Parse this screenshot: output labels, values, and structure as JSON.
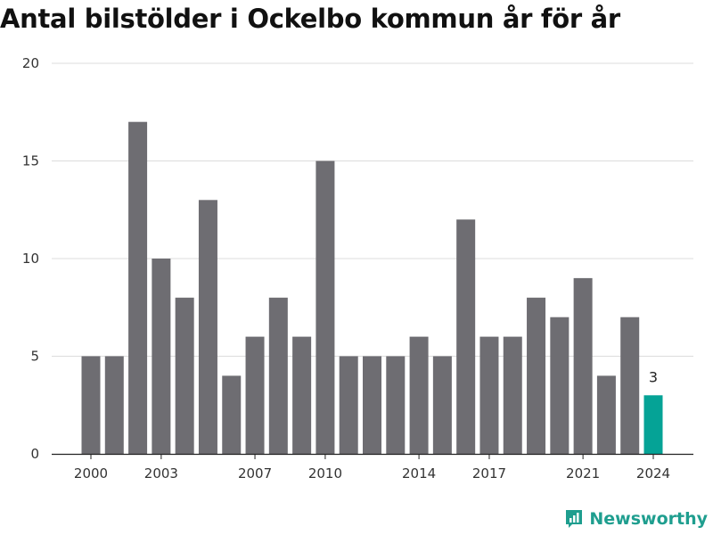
{
  "brand": {
    "name": "Newsworthy",
    "color": "#1f9e8f"
  },
  "chart_data": {
    "type": "bar",
    "title": "Antal bilstölder i Ockelbo kommun år för år",
    "xlabel": "",
    "ylabel": "",
    "categories": [
      2000,
      2001,
      2002,
      2003,
      2004,
      2005,
      2006,
      2007,
      2008,
      2009,
      2010,
      2011,
      2012,
      2013,
      2014,
      2015,
      2016,
      2017,
      2018,
      2019,
      2020,
      2021,
      2022,
      2023,
      2024
    ],
    "values": [
      5,
      5,
      17,
      10,
      8,
      13,
      4,
      6,
      8,
      6,
      15,
      5,
      5,
      5,
      6,
      5,
      12,
      6,
      6,
      8,
      7,
      9,
      4,
      7,
      3
    ],
    "x_tick_labels": [
      "2000",
      "2003",
      "2007",
      "2010",
      "2014",
      "2017",
      "2021",
      "2024"
    ],
    "y_ticks": [
      0,
      5,
      10,
      15,
      20
    ],
    "ylim": [
      0,
      20
    ],
    "grid": true,
    "bar_color": "#6e6d72",
    "highlight_color": "#05a396",
    "highlight_category": 2024,
    "data_labels": [
      {
        "category": 2024,
        "text": "3"
      }
    ]
  }
}
